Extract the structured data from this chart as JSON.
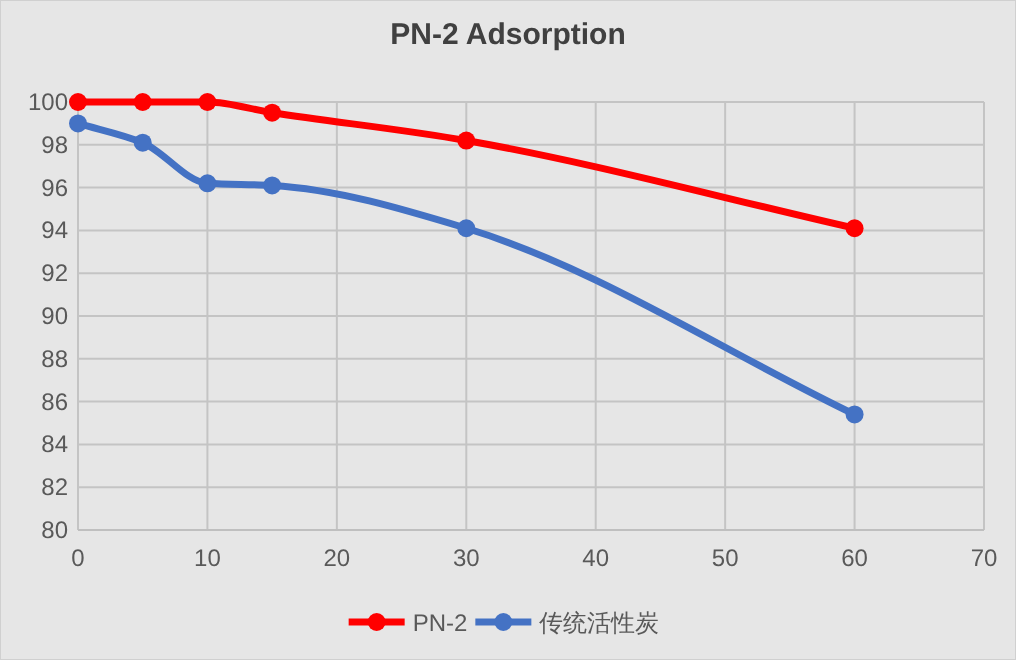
{
  "chart_data": {
    "type": "line",
    "title": "PN-2 Adsorption",
    "x": [
      0,
      5,
      10,
      15,
      30,
      60
    ],
    "series": [
      {
        "name": "PN-2",
        "color": "#ff0000",
        "values": [
          100,
          100,
          100,
          99.5,
          98.2,
          94.1
        ]
      },
      {
        "name": "传统活性炭",
        "color": "#4472c4",
        "values": [
          99.0,
          98.1,
          96.2,
          96.1,
          94.1,
          85.4
        ]
      }
    ],
    "xlim": [
      0,
      70
    ],
    "xticks": [
      0,
      10,
      20,
      30,
      40,
      50,
      60,
      70
    ],
    "ylim": [
      80,
      100
    ],
    "yticks": [
      80,
      82,
      84,
      86,
      88,
      90,
      92,
      94,
      96,
      98,
      100
    ],
    "grid": true,
    "legend": "bottom",
    "marker": "circle",
    "line_style": "solid"
  }
}
